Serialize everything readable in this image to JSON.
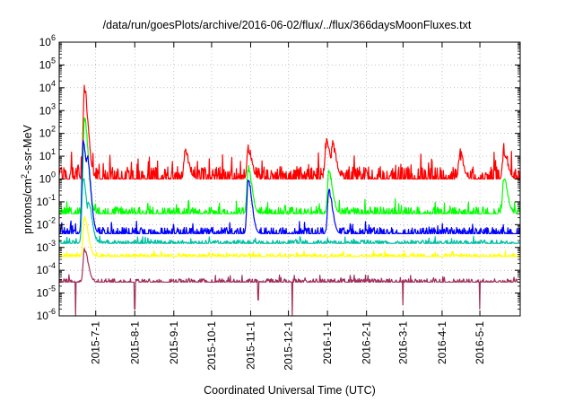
{
  "chart_data": {
    "type": "line",
    "title": "/data/run/goesPlots/archive/2016-06-02/flux/../flux/366daysMoonFluxes.txt",
    "xlabel": "Coordinated Universal Time (UTC)",
    "ylabel": {
      "prefix": "protons/cm",
      "sup": "2",
      "suffix": "-s-sr-MeV"
    },
    "yscale": "log",
    "ylim": [
      1e-06,
      1000000.0
    ],
    "xlim": [
      "2015-06-02",
      "2016-06-02"
    ],
    "grid": true,
    "legend": "none",
    "yticks": [
      {
        "base": "10",
        "exp": "-6"
      },
      {
        "base": "10",
        "exp": "-5"
      },
      {
        "base": "10",
        "exp": "-4"
      },
      {
        "base": "10",
        "exp": "-3"
      },
      {
        "base": "10",
        "exp": "-2"
      },
      {
        "base": "10",
        "exp": "-1"
      },
      {
        "base": "10",
        "exp": "0"
      },
      {
        "base": "10",
        "exp": "1"
      },
      {
        "base": "10",
        "exp": "2"
      },
      {
        "base": "10",
        "exp": "3"
      },
      {
        "base": "10",
        "exp": "4"
      },
      {
        "base": "10",
        "exp": "5"
      },
      {
        "base": "10",
        "exp": "6"
      }
    ],
    "xticks": [
      "2015-7-1",
      "2015-8-1",
      "2015-9-1",
      "2015-10-1",
      "2015-11-1",
      "2015-12-1",
      "2016-1-1",
      "2016-2-1",
      "2016-3-1",
      "2016-4-1",
      "2016-5-1"
    ],
    "xtick_dates": [
      "2015-07-01",
      "2015-08-01",
      "2015-09-01",
      "2015-10-01",
      "2015-11-01",
      "2015-12-01",
      "2016-01-01",
      "2016-02-01",
      "2016-03-01",
      "2016-04-01",
      "2016-05-01"
    ],
    "series": [
      {
        "color": "#ff0000",
        "baseline": 1.0,
        "noise_decades": 0.55,
        "peaks": [
          [
            "2015-06-22",
            10000
          ],
          [
            "2015-09-10",
            15
          ],
          [
            "2015-10-30",
            20
          ],
          [
            "2015-12-31",
            40
          ],
          [
            "2016-01-05",
            30
          ],
          [
            "2016-04-15",
            12
          ],
          [
            "2016-05-20",
            20
          ]
        ]
      },
      {
        "color": "#00ff00",
        "baseline": 0.03,
        "noise_decades": 0.3,
        "peaks": [
          [
            "2015-06-22",
            500
          ],
          [
            "2015-10-30",
            3
          ],
          [
            "2016-01-02",
            2
          ],
          [
            "2016-05-20",
            1
          ]
        ]
      },
      {
        "color": "#0000ff",
        "baseline": 0.004,
        "noise_decades": 0.28,
        "peaks": [
          [
            "2015-06-21",
            50
          ],
          [
            "2015-06-24",
            10
          ],
          [
            "2015-10-30",
            1
          ],
          [
            "2016-01-02",
            0.3
          ]
        ]
      },
      {
        "color": "#00c0a0",
        "baseline": 0.0015,
        "noise_decades": 0.15,
        "peaks": [
          [
            "2015-06-21",
            1
          ],
          [
            "2015-06-25",
            0.1
          ]
        ]
      },
      {
        "color": "#ffff00",
        "baseline": 0.0004,
        "noise_decades": 0.12,
        "peaks": [
          [
            "2015-06-22",
            0.02
          ]
        ]
      },
      {
        "color": "#a0305a",
        "baseline": 3e-05,
        "noise_decades": 0.15,
        "peaks": [
          [
            "2015-06-22",
            0.0008
          ]
        ],
        "dips": [
          [
            "2015-06-15",
            1e-06
          ],
          [
            "2015-08-01",
            2e-06
          ],
          [
            "2015-11-07",
            5e-06
          ],
          [
            "2015-12-04",
            1e-06
          ],
          [
            "2016-03-01",
            3e-06
          ],
          [
            "2016-05-01",
            2e-06
          ]
        ]
      }
    ]
  }
}
